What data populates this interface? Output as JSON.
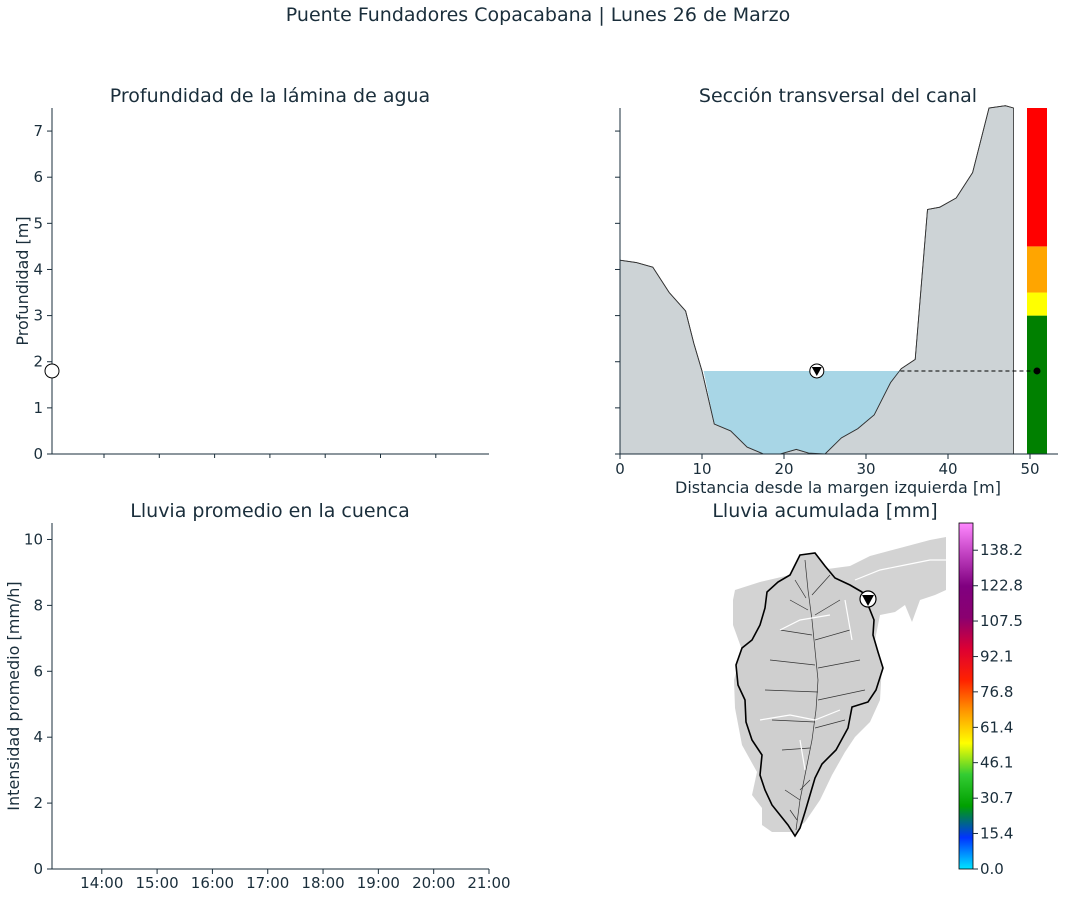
{
  "suptitle": "Puente Fundadores Copacabana | Lunes 26 de Marzo",
  "chart_data": [
    {
      "id": "depth",
      "type": "line",
      "title": "Profundidad de la lámina de agua",
      "ylabel": "Profundidad [m]",
      "xlabel": "",
      "ylim": [
        0,
        7.5
      ],
      "yticks": [
        0,
        1,
        2,
        3,
        4,
        5,
        6,
        7
      ],
      "ytick_labels": [
        "0",
        "1",
        "2",
        "3",
        "4",
        "5",
        "6",
        "7"
      ],
      "marker_value": 1.8,
      "grid": false
    },
    {
      "id": "section",
      "type": "area",
      "title": "Sección transversal del canal",
      "xlabel": "Distancia desde la margen izquierda [m]",
      "xlim": [
        0,
        53
      ],
      "ylim": [
        0,
        7.5
      ],
      "xticks": [
        0,
        10,
        20,
        30,
        40,
        50
      ],
      "xtick_labels": [
        "0",
        "10",
        "20",
        "30",
        "40",
        "50"
      ],
      "water_level": 1.8,
      "water_x": [
        10.2,
        34.2
      ],
      "marker_x": 24,
      "profile": [
        [
          0,
          4.2
        ],
        [
          2,
          4.15
        ],
        [
          4,
          4.05
        ],
        [
          6,
          3.5
        ],
        [
          8,
          3.1
        ],
        [
          9,
          2.4
        ],
        [
          10,
          1.8
        ],
        [
          11.5,
          0.65
        ],
        [
          13.5,
          0.5
        ],
        [
          15.5,
          0.15
        ],
        [
          17.5,
          0.0
        ],
        [
          19.5,
          0.0
        ],
        [
          21.5,
          0.1
        ],
        [
          23,
          0.02
        ],
        [
          25,
          0.0
        ],
        [
          27,
          0.35
        ],
        [
          29,
          0.55
        ],
        [
          31,
          0.85
        ],
        [
          33,
          1.55
        ],
        [
          34.3,
          1.85
        ],
        [
          36,
          2.05
        ],
        [
          37.5,
          5.3
        ],
        [
          39,
          5.35
        ],
        [
          41,
          5.55
        ],
        [
          43,
          6.1
        ],
        [
          44,
          6.8
        ],
        [
          45,
          7.5
        ],
        [
          47,
          7.55
        ],
        [
          48,
          7.5
        ]
      ],
      "alert_levels": [
        {
          "from": 0,
          "to": 3.0,
          "color": "#008000"
        },
        {
          "from": 3.0,
          "to": 3.5,
          "color": "#ffff00"
        },
        {
          "from": 3.5,
          "to": 4.5,
          "color": "#ffa500"
        },
        {
          "from": 4.5,
          "to": 7.5,
          "color": "#ff0000"
        }
      ]
    },
    {
      "id": "rain",
      "type": "line",
      "title": "Lluvia promedio en la cuenca",
      "ylabel": "Intensidad promedio [mm/h]",
      "xlabel": "",
      "ylim": [
        0,
        10.5
      ],
      "xlim": [
        13.1,
        21.0
      ],
      "yticks": [
        0,
        2,
        4,
        6,
        8,
        10
      ],
      "ytick_labels": [
        "0",
        "2",
        "4",
        "6",
        "8",
        "10"
      ],
      "xticks": [
        14,
        15,
        16,
        17,
        18,
        19,
        20,
        21
      ],
      "xtick_labels": [
        "14:00",
        "15:00",
        "16:00",
        "17:00",
        "18:00",
        "19:00",
        "20:00",
        "21:00"
      ]
    },
    {
      "id": "accum",
      "type": "heatmap",
      "title": "Lluvia acumulada [mm]",
      "colorbar_range": [
        0,
        150
      ],
      "colorbar_ticks": [
        0.0,
        15.4,
        30.7,
        46.1,
        61.4,
        76.8,
        92.1,
        107.5,
        122.8,
        138.2
      ],
      "colorbar_labels": [
        "0.0",
        "15.4",
        "30.7",
        "46.1",
        "61.4",
        "76.8",
        "92.1",
        "107.5",
        "122.8",
        "138.2"
      ],
      "colorbar_colors": [
        "#00e5ff",
        "#0033ff",
        "#00a000",
        "#33cc33",
        "#ffff00",
        "#ff9900",
        "#ff2200",
        "#dd0033",
        "#8a0070",
        "#800080",
        "#c040c0",
        "#ff88ff"
      ]
    }
  ]
}
